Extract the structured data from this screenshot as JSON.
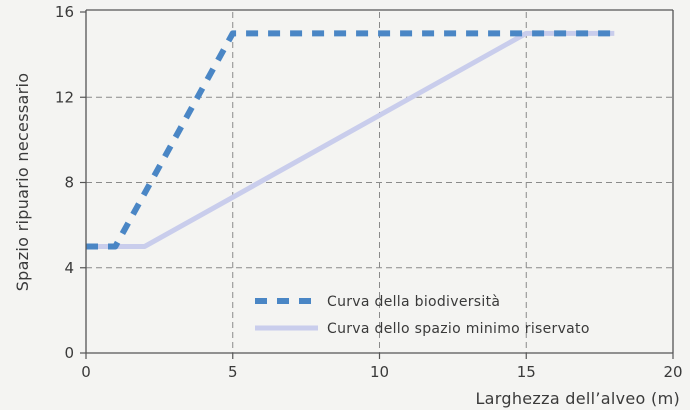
{
  "chart_data": {
    "type": "line",
    "xlabel": "Larghezza dell’alveo (m)",
    "ylabel": "Spazio ripuario necessario",
    "xlim": [
      0,
      20
    ],
    "ylim": [
      0,
      16
    ],
    "xticks": [
      "0",
      "5",
      "10",
      "15",
      "20"
    ],
    "yticks": [
      "0",
      "4",
      "8",
      "12",
      "16"
    ],
    "grid": "dashed",
    "legend_position": "bottom-center",
    "series": [
      {
        "name": "Curva della biodiversità",
        "style": "dashed",
        "color": "#4a86c5",
        "x": [
          0,
          1,
          5,
          15,
          18
        ],
        "y": [
          5,
          5,
          15,
          15,
          15
        ]
      },
      {
        "name": "Curva dello spazio minimo riservato",
        "style": "solid",
        "color": "#c9cdec",
        "x": [
          0,
          2,
          15,
          18
        ],
        "y": [
          5,
          5,
          15,
          15
        ]
      }
    ]
  }
}
